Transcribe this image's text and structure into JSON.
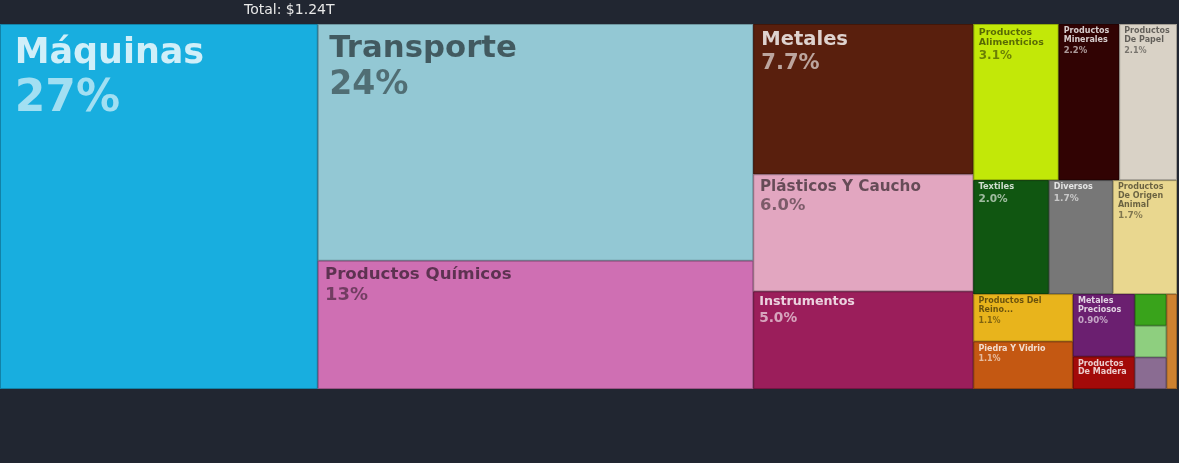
{
  "chart_data": {
    "type": "other",
    "title": "Total: $1.24T",
    "categories": [
      "Máquinas",
      "Transporte",
      "Productos Químicos",
      "Metales",
      "Plásticos Y Caucho",
      "Instrumentos",
      "Productos Alimenticios",
      "Productos Minerales",
      "Productos De Papel",
      "Textiles",
      "Diversos",
      "Productos De Origen Animal",
      "Productos Del Reino...",
      "Piedra Y Vidrio",
      "Metales Preciosos",
      "Productos De Madera",
      null,
      null,
      null,
      null
    ],
    "values": [
      27,
      24,
      13,
      7.7,
      6.0,
      5.0,
      3.1,
      2.2,
      2.1,
      2.0,
      1.7,
      1.7,
      1.1,
      1.1,
      0.9,
      null,
      null,
      null,
      null,
      null
    ],
    "value_labels": [
      "27%",
      "24%",
      "13%",
      "7.7%",
      "6.0%",
      "5.0%",
      "3.1%",
      "2.2%",
      "2.1%",
      "2.0%",
      "1.7%",
      "1.7%",
      "1.1%",
      "1.1%",
      "0.90%",
      null,
      null,
      null,
      null,
      null
    ],
    "colors": [
      "#18aedf",
      "#93c8d4",
      "#cf6fb3",
      "#591f0d",
      "#e2a6c0",
      "#9b1e5b",
      "#c2e808",
      "#310303",
      "#d9d2c6",
      "#105611",
      "#777777",
      "#e9d78f",
      "#e8b41c",
      "#c45812",
      "#6b1f70",
      "#a30a09",
      "#39a31b",
      "#ce8230",
      "#8ecf7f",
      "#8a6c92"
    ]
  }
}
